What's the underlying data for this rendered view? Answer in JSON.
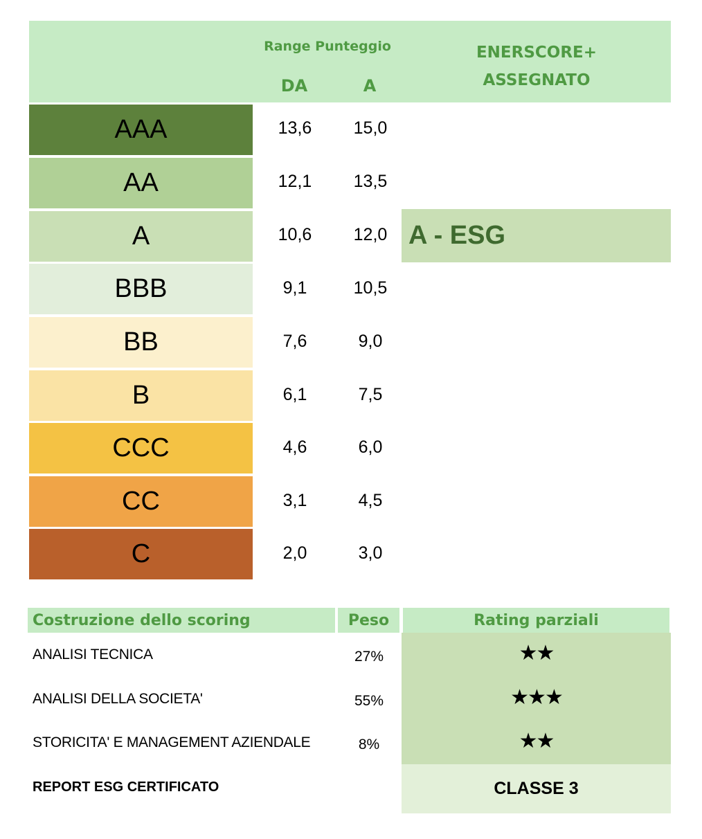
{
  "header": {
    "range_title": "Range Punteggio",
    "col_from": "DA",
    "col_to": "A",
    "assigned_title": "ENERSCORE+ ASSEGNATO"
  },
  "grades": [
    {
      "label": "AAA",
      "from": "13,6",
      "to": "15,0",
      "color": "#5d813c"
    },
    {
      "label": "AA",
      "from": "12,1",
      "to": "13,5",
      "color": "#b0d096"
    },
    {
      "label": "A",
      "from": "10,6",
      "to": "12,0",
      "color": "#c9dfb5"
    },
    {
      "label": "BBB",
      "from": "9,1",
      "to": "10,5",
      "color": "#e2eedb"
    },
    {
      "label": "BB",
      "from": "7,6",
      "to": "9,0",
      "color": "#fcf0cd"
    },
    {
      "label": "B",
      "from": "6,1",
      "to": "7,5",
      "color": "#fae3a5"
    },
    {
      "label": "CCC",
      "from": "4,6",
      "to": "6,0",
      "color": "#f4c244"
    },
    {
      "label": "CC",
      "from": "3,1",
      "to": "4,5",
      "color": "#f0a447"
    },
    {
      "label": "C",
      "from": "2,0",
      "to": "3,0",
      "color": "#b9602b"
    }
  ],
  "assigned": "A - ESG",
  "scoring": {
    "header_left": "Costruzione dello scoring",
    "header_mid": "Peso",
    "header_right": "Rating parziali",
    "rows": [
      {
        "label": "ANALISI TECNICA",
        "weight": "27%",
        "stars": "★★"
      },
      {
        "label": "ANALISI DELLA SOCIETA'",
        "weight": "55%",
        "stars": "★★★"
      },
      {
        "label": "STORICITA' E MANAGEMENT AZIENDALE",
        "weight": "8%",
        "stars": "★★"
      }
    ],
    "report_label": "REPORT ESG CERTIFICATO",
    "report_value": "CLASSE 3"
  }
}
